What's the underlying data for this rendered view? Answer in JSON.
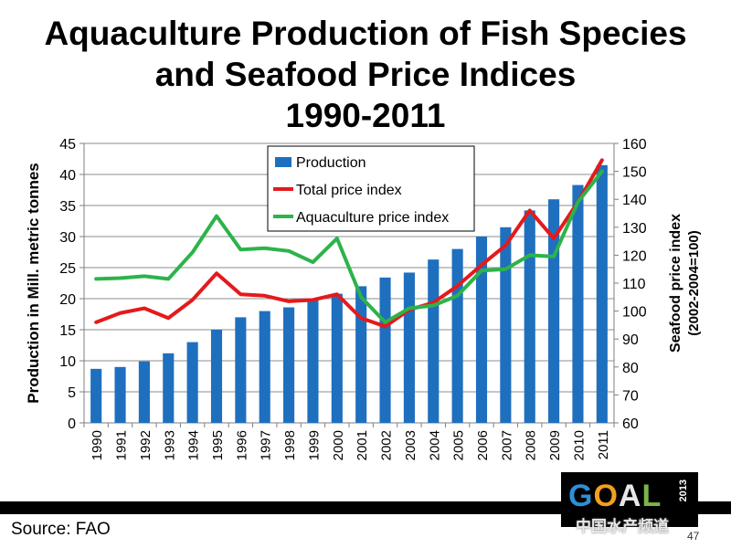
{
  "title": {
    "line1": "Aquaculture Production of Fish Species",
    "line2": "and Seafood Price Indices",
    "line3": "1990-2011"
  },
  "chart_data": {
    "type": "bar+line",
    "categories": [
      "1990",
      "1991",
      "1992",
      "1993",
      "1994",
      "1995",
      "1996",
      "1997",
      "1998",
      "1999",
      "2000",
      "2001",
      "2002",
      "2003",
      "2004",
      "2005",
      "2006",
      "2007",
      "2008",
      "2009",
      "2010",
      "2011"
    ],
    "bar_series": {
      "name": "Production",
      "color": "#1f6fbf",
      "axis": "left",
      "values": [
        8.7,
        9.0,
        9.9,
        11.2,
        13.0,
        15.0,
        17.0,
        18.0,
        18.6,
        19.8,
        20.8,
        22.0,
        23.4,
        24.2,
        26.3,
        28.0,
        30.0,
        31.5,
        34.2,
        36.0,
        38.3,
        41.5
      ]
    },
    "line_series": [
      {
        "name": "Total price index",
        "color": "#e41a1c",
        "axis": "right",
        "values": [
          96,
          99.3,
          101,
          97.5,
          104,
          113.5,
          106,
          105.5,
          103.5,
          104,
          106,
          97.5,
          94.5,
          100.5,
          103,
          109,
          116.5,
          123.5,
          136,
          126,
          139,
          154
        ]
      },
      {
        "name": "Aquaculture price index",
        "color": "#2db34a",
        "axis": "right",
        "values": [
          111.5,
          111.8,
          112.5,
          111.5,
          121,
          134,
          122,
          122.5,
          121.5,
          117.5,
          126,
          105,
          96,
          101,
          102,
          105.5,
          114.5,
          115,
          120,
          119.5,
          139,
          150
        ]
      }
    ],
    "y_left": {
      "label": "Production in Mill. metric tonnes",
      "min": 0,
      "max": 45,
      "ticks": [
        0,
        5,
        10,
        15,
        20,
        25,
        30,
        35,
        40,
        45
      ]
    },
    "y_right": {
      "label_line1": "Seafood price index",
      "label_line2": "(2002-2004=100)",
      "min": 60,
      "max": 160,
      "ticks": [
        60,
        70,
        80,
        90,
        100,
        110,
        120,
        130,
        140,
        150,
        160
      ]
    },
    "grid": true,
    "legend_position": "top-center"
  },
  "footer": {
    "source": "Source: FAO",
    "page_number": "47"
  },
  "logo": {
    "text": "GOAL",
    "year": "2013",
    "watermark": "中国水产频道"
  }
}
